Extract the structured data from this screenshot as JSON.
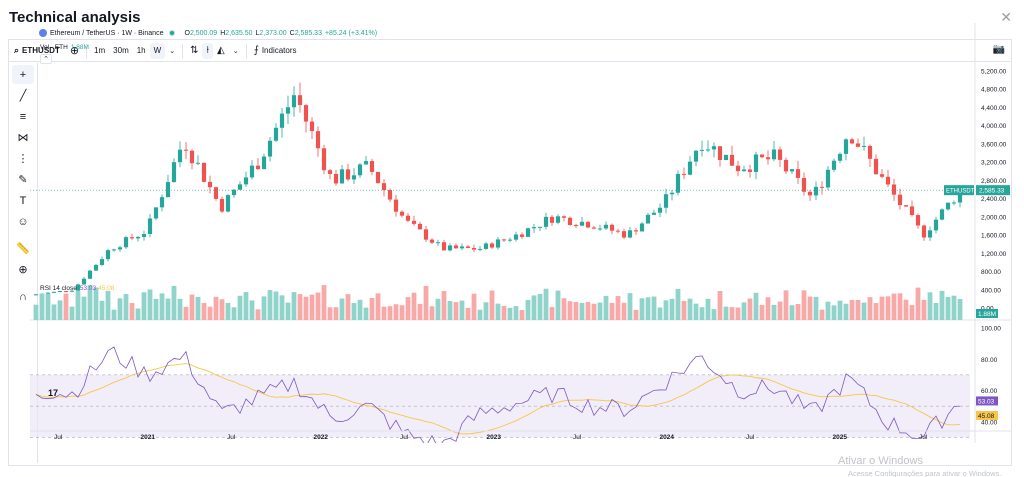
{
  "modal": {
    "title": "Technical analysis",
    "close_icon": "close-icon"
  },
  "toolbar": {
    "symbol": "ETHUSDT",
    "intervals": [
      "1m",
      "30m",
      "1h",
      "W"
    ],
    "active_interval": "W",
    "indicators_label": "Indicators"
  },
  "legend": {
    "title": "Ethereum / TetherUS · 1W · Binance",
    "o_label": "O",
    "o": "2,500.09",
    "h_label": "H",
    "h": "2,635.50",
    "l_label": "L",
    "l": "2,373.00",
    "c_label": "C",
    "c": "2,585.33",
    "change": "+85.24 (+3.41%)"
  },
  "volume_legend": {
    "label": "Vol · ETH",
    "value": "1.88M"
  },
  "rsi_legend": {
    "label": "RSI 14 close",
    "rsi": "53.03",
    "ma": "45.08"
  },
  "price_axis_labels": [
    "5,200.00",
    "4,800.00",
    "4,400.00",
    "4,000.00",
    "3,600.00",
    "3,200.00",
    "2,800.00",
    "2,400.00",
    "2,000.00",
    "1,600.00",
    "1,200.00",
    "800.00",
    "400.00",
    "0.00"
  ],
  "rsi_axis_labels": [
    "100.00",
    "80.00",
    "60.00",
    "40.00",
    "20.00"
  ],
  "price_tags": {
    "symbol": "ETHUSDT",
    "price": "2,585.33",
    "volume": "1.88M",
    "rsi": "53.03",
    "rsi_ma": "45.08"
  },
  "time_axis_labels": [
    "Jul",
    "2021",
    "Jul",
    "2022",
    "Jul",
    "2023",
    "Jul",
    "2024",
    "Jul",
    "2025",
    "Jul"
  ],
  "logo_text": "17",
  "windows_watermark": {
    "line1": "Ativar o Windows",
    "line2": "Acesse Configurações para ativar o Windows."
  },
  "colors": {
    "up": "#26a69a",
    "down": "#ef5350",
    "rsi_line": "#7e57c2",
    "rsi_ma": "#f7c548",
    "rsi_band": "#ede7f6",
    "volume_up": "#8fd3cb",
    "volume_down": "#f7a9a7"
  },
  "chart_data": {
    "type": "candlestick",
    "title": "Ethereum / TetherUS · 1W · Binance",
    "x": [
      "2020-07",
      "2020-10",
      "2021-01",
      "2021-03",
      "2021-05",
      "2021-07",
      "2021-09",
      "2021-11",
      "2022-01",
      "2022-03",
      "2022-05",
      "2022-07",
      "2022-10",
      "2023-01",
      "2023-04",
      "2023-07",
      "2023-10",
      "2024-01",
      "2024-03",
      "2024-05",
      "2024-07",
      "2024-09",
      "2024-12",
      "2025-02",
      "2025-04",
      "2025-06"
    ],
    "series": [
      {
        "name": "close",
        "values": [
          300,
          400,
          1300,
          1700,
          3700,
          2200,
          3200,
          4700,
          2800,
          3100,
          1900,
          1300,
          1300,
          1600,
          2000,
          1850,
          1600,
          2300,
          3700,
          3100,
          3300,
          2400,
          3900,
          2700,
          1600,
          2585
        ]
      },
      {
        "name": "RSI 14 close",
        "values": [
          60,
          58,
          85,
          70,
          82,
          45,
          55,
          65,
          42,
          50,
          32,
          25,
          45,
          52,
          58,
          50,
          48,
          65,
          82,
          60,
          62,
          45,
          68,
          40,
          30,
          53
        ]
      }
    ],
    "ylim": [
      0,
      5400
    ],
    "rsi_ylim": [
      20,
      100
    ]
  }
}
